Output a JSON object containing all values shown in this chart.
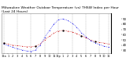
{
  "title_line1": "Milwaukee Weather Outdoor Temperature (vs) THSW Index per Hour",
  "title_line2": "(Last 24 Hours)",
  "title_fontsize": 3.2,
  "bg_color": "#ffffff",
  "plot_bg_color": "#ffffff",
  "grid_color": "#888888",
  "hours": [
    0,
    1,
    2,
    3,
    4,
    5,
    6,
    7,
    8,
    9,
    10,
    11,
    12,
    13,
    14,
    15,
    16,
    17,
    18,
    19,
    20,
    21,
    22,
    23
  ],
  "temp_data": [
    44,
    42,
    40,
    39,
    38,
    37,
    37,
    38,
    42,
    50,
    57,
    63,
    67,
    68,
    67,
    65,
    62,
    58,
    54,
    50,
    47,
    45,
    44,
    42
  ],
  "thsw_data": [
    42,
    39,
    36,
    33,
    31,
    29,
    28,
    31,
    40,
    55,
    68,
    80,
    88,
    90,
    87,
    82,
    74,
    64,
    56,
    49,
    44,
    41,
    38,
    36
  ],
  "temp_color": "#cc0000",
  "thsw_color": "#0000ee",
  "ylim_min": 25,
  "ylim_max": 100,
  "ytick_values": [
    30,
    40,
    50,
    60,
    70,
    80,
    90
  ],
  "ytick_fontsize": 2.8,
  "xtick_fontsize": 2.5,
  "xtick_labels": [
    "12a",
    "1",
    "2",
    "3",
    "4",
    "5",
    "6",
    "7",
    "8",
    "9",
    "10",
    "11",
    "12p",
    "1",
    "2",
    "3",
    "4",
    "5",
    "6",
    "7",
    "8",
    "9",
    "10",
    "11"
  ],
  "grid_hours": [
    0,
    3,
    6,
    9,
    12,
    15,
    18,
    21,
    23
  ],
  "marker_size": 1.2,
  "line_width": 0.5,
  "right_ytick_values": [
    30,
    40,
    50,
    60,
    70,
    80,
    90
  ],
  "right_ytick_fontsize": 2.8
}
